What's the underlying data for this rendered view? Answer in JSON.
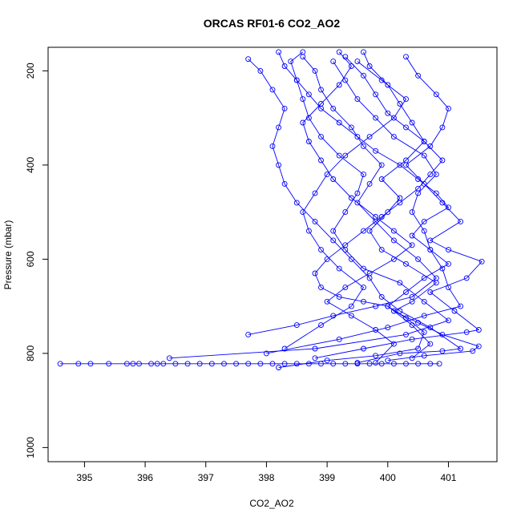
{
  "chart_data": {
    "type": "line",
    "title": "ORCAS RF01-6 CO2_AO2",
    "xlabel": "CO2_AO2",
    "ylabel": "Pressure (mbar)",
    "xlim": [
      394.4,
      401.8
    ],
    "ylim": [
      1030,
      150
    ],
    "y_inverted": true,
    "x_ticks": [
      395,
      396,
      397,
      398,
      399,
      400,
      401
    ],
    "y_ticks": [
      200,
      400,
      600,
      800,
      1000
    ],
    "grid": false,
    "legend": "none",
    "marker": "open-circle",
    "series_color": "#0000ff",
    "series": [
      {
        "segment": "surface-transect",
        "points": [
          [
            394.6,
            822
          ],
          [
            394.9,
            822
          ],
          [
            395.1,
            822
          ],
          [
            395.4,
            822
          ],
          [
            395.7,
            822
          ],
          [
            395.8,
            822
          ],
          [
            395.9,
            822
          ],
          [
            396.1,
            822
          ],
          [
            396.2,
            822
          ],
          [
            396.3,
            822
          ],
          [
            396.5,
            822
          ],
          [
            396.7,
            822
          ],
          [
            396.9,
            822
          ],
          [
            397.1,
            822
          ],
          [
            397.3,
            822
          ],
          [
            397.5,
            822
          ],
          [
            397.7,
            822
          ],
          [
            397.9,
            822
          ],
          [
            398.1,
            822
          ],
          [
            398.3,
            822
          ],
          [
            398.5,
            822
          ],
          [
            398.7,
            822
          ],
          [
            398.9,
            822
          ],
          [
            399.1,
            822
          ],
          [
            399.3,
            822
          ],
          [
            399.5,
            822
          ],
          [
            399.7,
            822
          ],
          [
            399.9,
            822
          ],
          [
            400.1,
            822
          ],
          [
            400.3,
            822
          ],
          [
            400.5,
            822
          ],
          [
            400.7,
            822
          ],
          [
            400.85,
            822
          ]
        ]
      },
      {
        "segment": "profile-1",
        "points": [
          [
            396.4,
            810
          ],
          [
            398.8,
            790
          ],
          [
            400.3,
            760
          ],
          [
            401.0,
            730
          ],
          [
            400.6,
            690
          ],
          [
            400.2,
            650
          ],
          [
            399.6,
            620
          ],
          [
            399.3,
            580
          ],
          [
            399.1,
            540
          ],
          [
            399.3,
            500
          ],
          [
            399.5,
            460
          ],
          [
            399.6,
            420
          ],
          [
            399.2,
            380
          ],
          [
            398.9,
            340
          ],
          [
            398.7,
            300
          ],
          [
            398.6,
            260
          ],
          [
            398.5,
            220
          ],
          [
            398.4,
            180
          ],
          [
            398.6,
            160
          ]
        ]
      },
      {
        "segment": "profile-2",
        "points": [
          [
            397.7,
            760
          ],
          [
            398.5,
            740
          ],
          [
            399.1,
            720
          ],
          [
            399.8,
            700
          ],
          [
            400.4,
            680
          ],
          [
            400.8,
            640
          ],
          [
            400.5,
            600
          ],
          [
            400.1,
            560
          ],
          [
            399.8,
            520
          ],
          [
            399.5,
            480
          ],
          [
            399.7,
            440
          ],
          [
            399.9,
            400
          ],
          [
            399.6,
            360
          ],
          [
            399.4,
            320
          ],
          [
            399.1,
            280
          ],
          [
            398.9,
            240
          ],
          [
            398.8,
            200
          ],
          [
            398.6,
            170
          ]
        ]
      },
      {
        "segment": "profile-3",
        "points": [
          [
            398.0,
            800
          ],
          [
            399.2,
            770
          ],
          [
            400.0,
            745
          ],
          [
            400.6,
            720
          ],
          [
            401.2,
            700
          ],
          [
            401.0,
            660
          ],
          [
            400.9,
            620
          ],
          [
            400.7,
            580
          ],
          [
            400.6,
            540
          ],
          [
            400.4,
            500
          ],
          [
            400.5,
            460
          ],
          [
            400.8,
            420
          ],
          [
            400.6,
            380
          ],
          [
            400.1,
            340
          ],
          [
            399.8,
            300
          ],
          [
            399.5,
            260
          ],
          [
            399.3,
            220
          ],
          [
            399.1,
            180
          ]
        ]
      },
      {
        "segment": "profile-4",
        "points": [
          [
            398.3,
            790
          ],
          [
            398.9,
            740
          ],
          [
            399.4,
            700
          ],
          [
            399.6,
            660
          ],
          [
            399.2,
            620
          ],
          [
            398.9,
            580
          ],
          [
            398.7,
            540
          ],
          [
            398.6,
            500
          ],
          [
            398.8,
            460
          ],
          [
            399.0,
            420
          ],
          [
            399.3,
            380
          ],
          [
            399.7,
            340
          ],
          [
            400.1,
            300
          ],
          [
            400.3,
            260
          ],
          [
            399.9,
            220
          ],
          [
            399.5,
            180
          ]
        ]
      },
      {
        "segment": "profile-5",
        "points": [
          [
            398.8,
            810
          ],
          [
            399.6,
            790
          ],
          [
            400.4,
            770
          ],
          [
            401.3,
            755
          ],
          [
            401.5,
            750
          ],
          [
            401.1,
            710
          ],
          [
            400.7,
            670
          ],
          [
            401.3,
            640
          ],
          [
            401.55,
            605
          ],
          [
            401.0,
            580
          ],
          [
            400.7,
            560
          ],
          [
            401.2,
            520
          ],
          [
            400.9,
            480
          ],
          [
            400.6,
            440
          ],
          [
            400.3,
            400
          ],
          [
            400.7,
            360
          ],
          [
            400.9,
            320
          ],
          [
            401.0,
            280
          ],
          [
            400.8,
            250
          ],
          [
            400.5,
            210
          ],
          [
            400.3,
            170
          ]
        ]
      },
      {
        "segment": "profile-6",
        "points": [
          [
            399.5,
            820
          ],
          [
            400.2,
            800
          ],
          [
            400.9,
            795
          ],
          [
            401.2,
            790
          ],
          [
            400.7,
            745
          ],
          [
            400.2,
            710
          ],
          [
            399.9,
            680
          ],
          [
            399.7,
            640
          ],
          [
            399.4,
            600
          ],
          [
            399.1,
            560
          ],
          [
            398.8,
            520
          ],
          [
            398.5,
            480
          ],
          [
            398.3,
            440
          ],
          [
            398.2,
            400
          ],
          [
            398.1,
            360
          ],
          [
            398.2,
            320
          ],
          [
            398.3,
            280
          ],
          [
            398.1,
            240
          ],
          [
            397.9,
            200
          ],
          [
            397.7,
            175
          ]
        ]
      },
      {
        "segment": "profile-7",
        "points": [
          [
            400.0,
            815
          ],
          [
            400.6,
            805
          ],
          [
            401.4,
            795
          ],
          [
            401.5,
            785
          ],
          [
            400.9,
            760
          ],
          [
            400.5,
            735
          ],
          [
            400.1,
            710
          ],
          [
            400.4,
            690
          ],
          [
            400.8,
            650
          ],
          [
            400.3,
            610
          ],
          [
            399.9,
            580
          ],
          [
            399.7,
            540
          ],
          [
            400.0,
            500
          ],
          [
            400.2,
            470
          ],
          [
            399.9,
            430
          ],
          [
            400.3,
            390
          ],
          [
            400.6,
            350
          ],
          [
            400.4,
            310
          ],
          [
            400.2,
            270
          ],
          [
            400.0,
            230
          ],
          [
            399.7,
            190
          ],
          [
            399.6,
            160
          ]
        ]
      },
      {
        "segment": "profile-8",
        "points": [
          [
            398.2,
            830
          ],
          [
            399.0,
            815
          ],
          [
            399.8,
            805
          ],
          [
            400.5,
            790
          ],
          [
            400.6,
            755
          ],
          [
            400.3,
            725
          ],
          [
            400.0,
            700
          ],
          [
            399.6,
            690
          ],
          [
            399.2,
            680
          ],
          [
            398.9,
            660
          ],
          [
            398.8,
            630
          ],
          [
            399.0,
            600
          ],
          [
            399.3,
            570
          ],
          [
            399.6,
            540
          ],
          [
            399.9,
            510
          ],
          [
            400.2,
            480
          ],
          [
            400.5,
            450
          ],
          [
            400.7,
            420
          ],
          [
            400.9,
            390
          ],
          [
            400.6,
            350
          ],
          [
            400.3,
            320
          ],
          [
            400.0,
            290
          ],
          [
            399.8,
            250
          ],
          [
            399.6,
            210
          ],
          [
            399.3,
            170
          ]
        ]
      },
      {
        "segment": "profile-9",
        "points": [
          [
            399.8,
            820
          ],
          [
            400.1,
            780
          ],
          [
            399.8,
            750
          ],
          [
            399.4,
            720
          ],
          [
            399.0,
            690
          ],
          [
            399.3,
            660
          ],
          [
            399.7,
            630
          ],
          [
            400.1,
            600
          ],
          [
            400.4,
            570
          ],
          [
            400.1,
            540
          ],
          [
            399.8,
            510
          ],
          [
            399.4,
            470
          ],
          [
            399.1,
            430
          ],
          [
            398.9,
            390
          ],
          [
            398.7,
            350
          ],
          [
            398.6,
            310
          ],
          [
            398.9,
            270
          ],
          [
            399.2,
            230
          ],
          [
            399.4,
            190
          ],
          [
            399.2,
            160
          ]
        ]
      },
      {
        "segment": "profile-10",
        "points": [
          [
            400.4,
            810
          ],
          [
            400.7,
            780
          ],
          [
            400.4,
            740
          ],
          [
            400.0,
            700
          ],
          [
            400.3,
            670
          ],
          [
            400.6,
            640
          ],
          [
            401.0,
            610
          ],
          [
            400.7,
            580
          ],
          [
            400.4,
            550
          ],
          [
            400.6,
            520
          ],
          [
            401.0,
            490
          ],
          [
            400.8,
            460
          ],
          [
            400.5,
            430
          ],
          [
            400.2,
            400
          ],
          [
            399.8,
            370
          ],
          [
            399.5,
            340
          ],
          [
            399.2,
            310
          ],
          [
            398.9,
            280
          ],
          [
            398.7,
            250
          ],
          [
            398.5,
            220
          ],
          [
            398.3,
            190
          ],
          [
            398.2,
            160
          ]
        ]
      }
    ]
  }
}
